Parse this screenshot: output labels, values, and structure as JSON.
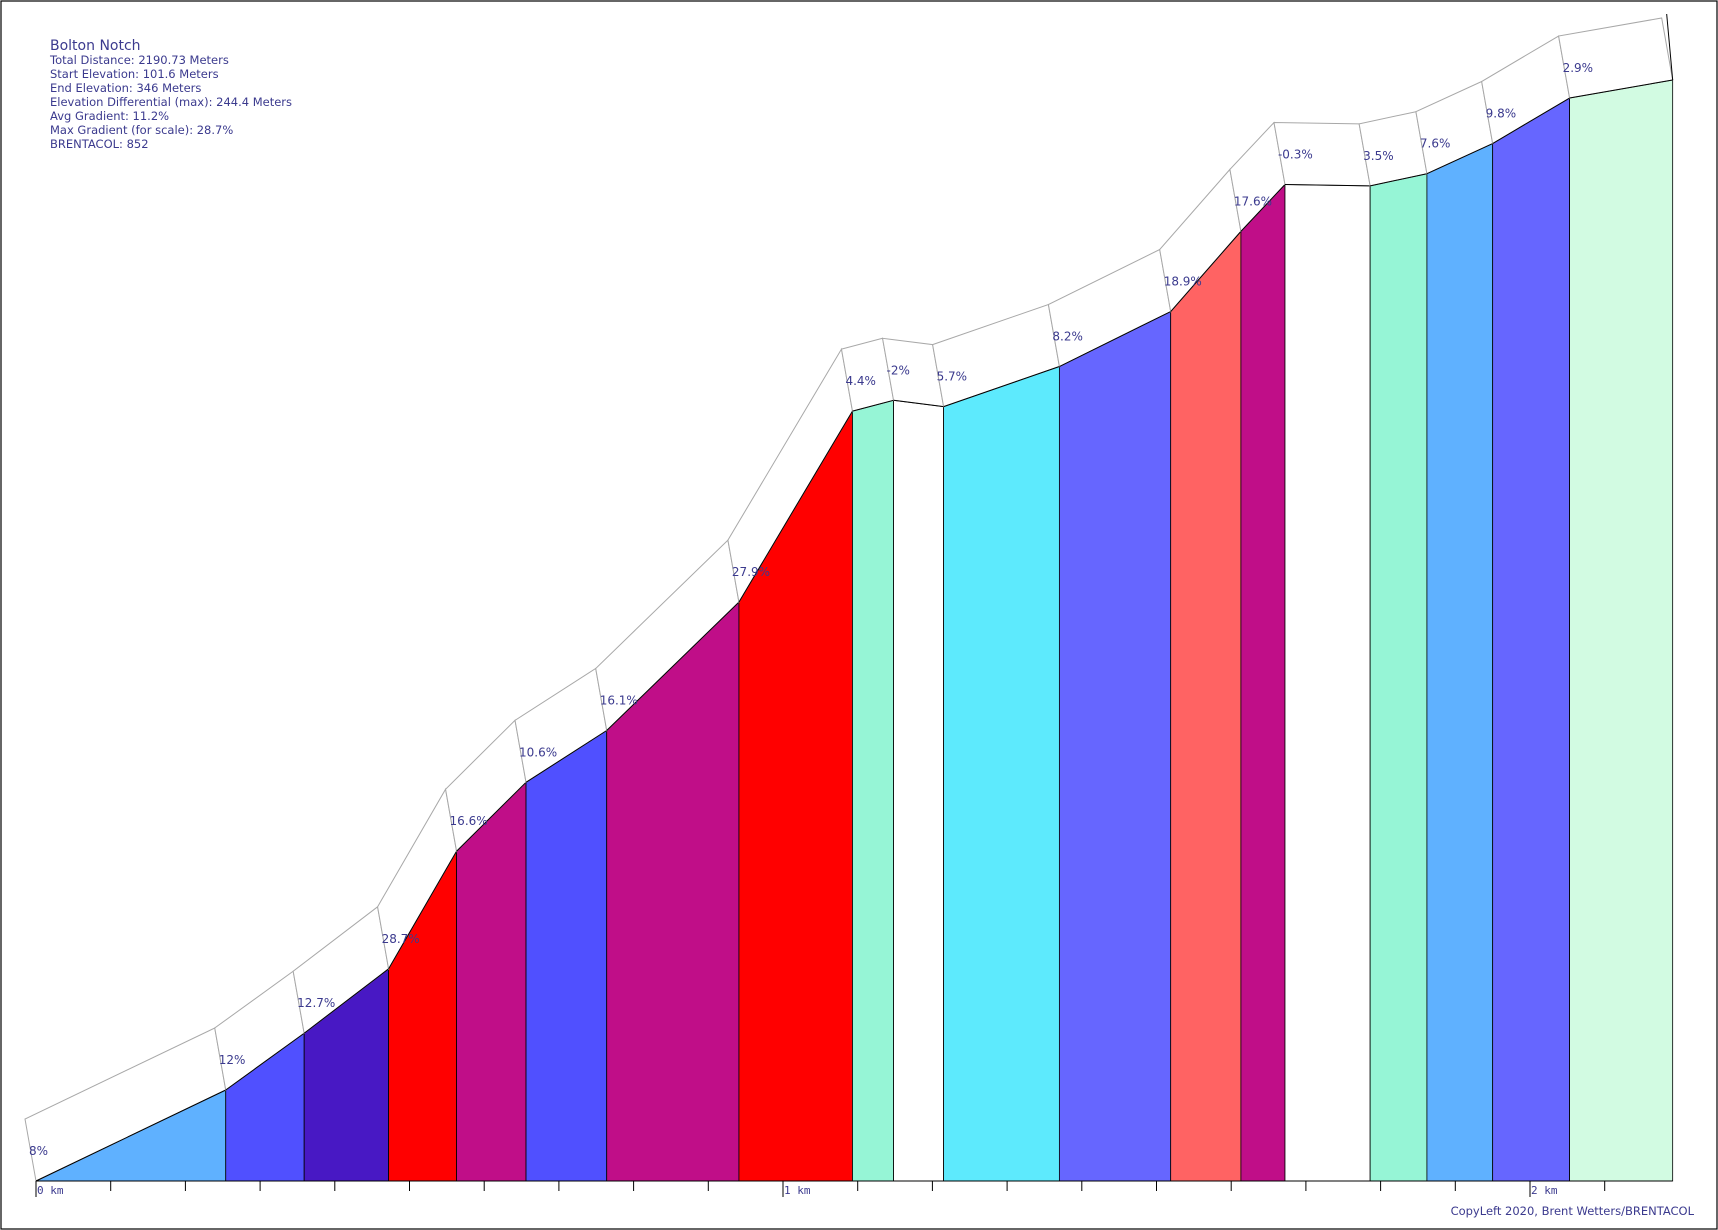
{
  "info": {
    "title": "Bolton Notch",
    "lines": [
      "Total Distance: 2190.73 Meters",
      "Start Elevation: 101.6 Meters",
      "End Elevation: 346 Meters",
      "Elevation Differential (max): 244.4 Meters",
      "Avg Gradient: 11.2%",
      "Max Gradient (for scale): 28.7%",
      "BRENTACOL: 852"
    ]
  },
  "credit": "CopyLeft 2020, Brent Wetters/BRENTACOL",
  "chart_data": {
    "type": "area",
    "title": "Bolton Notch",
    "xlabel": "",
    "ylabel": "",
    "x_unit": "km",
    "xlim": [
      0,
      2.19073
    ],
    "ylim": [
      101.6,
      346
    ],
    "x_ticks": [
      "0 km",
      "1 km",
      "2 km"
    ],
    "segments": [
      {
        "start_km": 0.0,
        "end_km": 0.254,
        "gradient_label": "8%",
        "color": "#5fb1ff"
      },
      {
        "start_km": 0.254,
        "end_km": 0.359,
        "gradient_label": "12%",
        "color": "#5050ff"
      },
      {
        "start_km": 0.359,
        "end_km": 0.472,
        "gradient_label": "12.7%",
        "color": "#4818c4"
      },
      {
        "start_km": 0.472,
        "end_km": 0.563,
        "gradient_label": "28.7%",
        "color": "#ff0000"
      },
      {
        "start_km": 0.563,
        "end_km": 0.656,
        "gradient_label": "16.6%",
        "color": "#c00e88"
      },
      {
        "start_km": 0.656,
        "end_km": 0.764,
        "gradient_label": "10.6%",
        "color": "#5050ff"
      },
      {
        "start_km": 0.764,
        "end_km": 0.941,
        "gradient_label": "16.1%",
        "color": "#c00e88"
      },
      {
        "start_km": 0.941,
        "end_km": 1.093,
        "gradient_label": "27.9%",
        "color": "#ff0000"
      },
      {
        "start_km": 1.093,
        "end_km": 1.148,
        "gradient_label": "4.4%",
        "color": "#96f5d6"
      },
      {
        "start_km": 1.148,
        "end_km": 1.215,
        "gradient_label": "-2%",
        "color": "#ffffff"
      },
      {
        "start_km": 1.215,
        "end_km": 1.37,
        "gradient_label": "5.7%",
        "color": "#5deafd"
      },
      {
        "start_km": 1.37,
        "end_km": 1.519,
        "gradient_label": "8.2%",
        "color": "#6666ff"
      },
      {
        "start_km": 1.519,
        "end_km": 1.613,
        "gradient_label": "18.9%",
        "color": "#ff6363"
      },
      {
        "start_km": 1.613,
        "end_km": 1.672,
        "gradient_label": "17.6%",
        "color": "#c00e88"
      },
      {
        "start_km": 1.672,
        "end_km": 1.786,
        "gradient_label": "-0.3%",
        "color": "#ffffff"
      },
      {
        "start_km": 1.786,
        "end_km": 1.862,
        "gradient_label": "3.5%",
        "color": "#96f5d6"
      },
      {
        "start_km": 1.862,
        "end_km": 1.95,
        "gradient_label": "7.6%",
        "color": "#5fb1ff"
      },
      {
        "start_km": 1.95,
        "end_km": 2.053,
        "gradient_label": "9.8%",
        "color": "#6666ff"
      },
      {
        "start_km": 2.053,
        "end_km": 2.191,
        "gradient_label": "2.9%",
        "color": "#d2fbe2"
      }
    ],
    "profile": [
      {
        "km": 0.0,
        "elev": 101.6
      },
      {
        "km": 0.254,
        "elev": 121.8
      },
      {
        "km": 0.359,
        "elev": 134.4
      },
      {
        "km": 0.472,
        "elev": 148.7
      },
      {
        "km": 0.563,
        "elev": 174.8
      },
      {
        "km": 0.656,
        "elev": 190.1
      },
      {
        "km": 0.764,
        "elev": 201.6
      },
      {
        "km": 0.941,
        "elev": 230.1
      },
      {
        "km": 1.093,
        "elev": 272.5
      },
      {
        "km": 1.148,
        "elev": 274.9
      },
      {
        "km": 1.215,
        "elev": 273.5
      },
      {
        "km": 1.37,
        "elev": 282.4
      },
      {
        "km": 1.519,
        "elev": 294.6
      },
      {
        "km": 1.613,
        "elev": 312.4
      },
      {
        "km": 1.672,
        "elev": 322.8
      },
      {
        "km": 1.786,
        "elev": 322.5
      },
      {
        "km": 1.862,
        "elev": 325.2
      },
      {
        "km": 1.95,
        "elev": 331.9
      },
      {
        "km": 2.053,
        "elev": 342.0
      },
      {
        "km": 2.191,
        "elev": 346.0
      }
    ]
  }
}
